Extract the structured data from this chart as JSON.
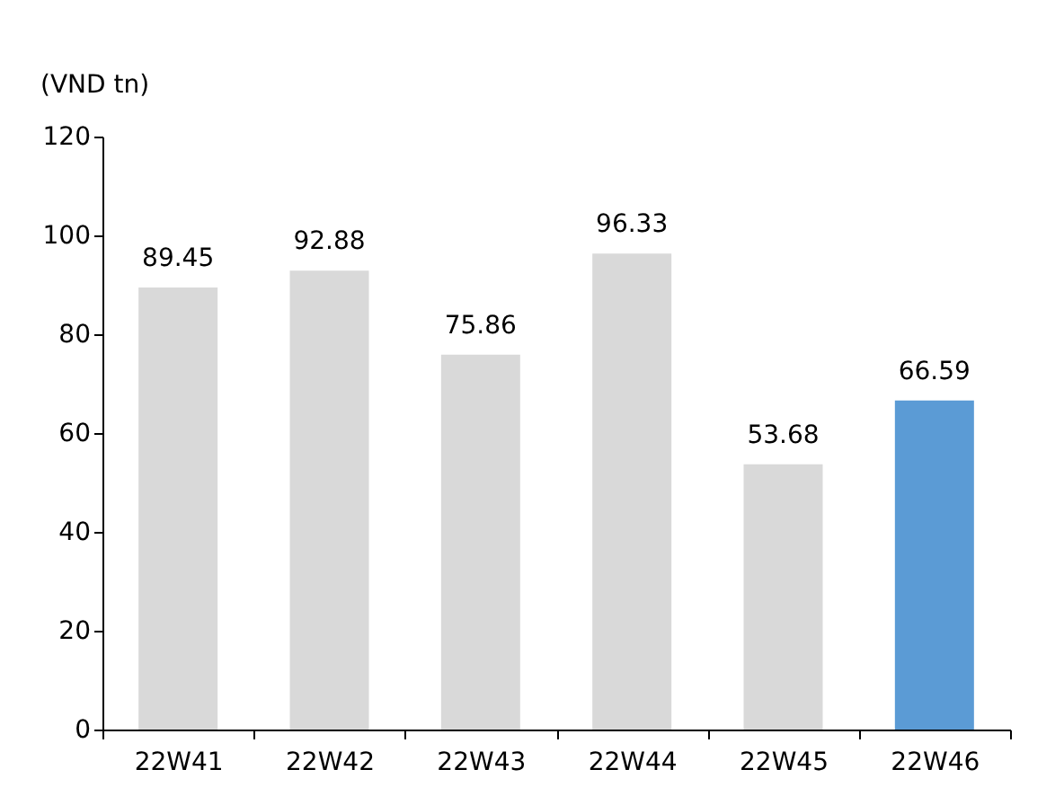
{
  "chart_data": {
    "type": "bar",
    "ylabel": "(VND tn)",
    "categories": [
      "22W41",
      "22W42",
      "22W43",
      "22W44",
      "22W45",
      "22W46"
    ],
    "values": [
      89.45,
      92.88,
      75.86,
      96.33,
      53.68,
      66.59
    ],
    "colors": [
      "#d9d9d9",
      "#d9d9d9",
      "#d9d9d9",
      "#d9d9d9",
      "#d9d9d9",
      "#5b9bd5"
    ],
    "ylim": [
      0,
      120
    ],
    "yticks": [
      0,
      20,
      40,
      60,
      80,
      100,
      120
    ],
    "grid": false,
    "data_labels": true
  }
}
